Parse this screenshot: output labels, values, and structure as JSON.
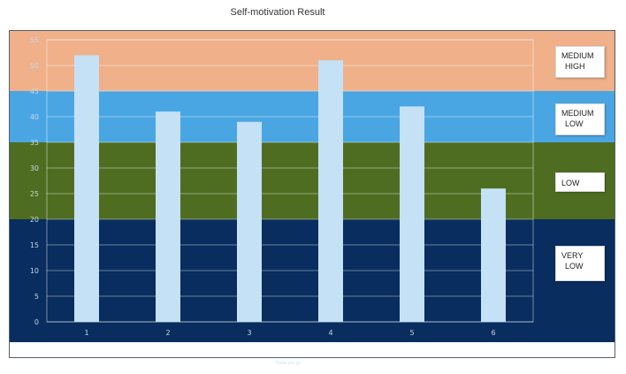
{
  "chart_data": {
    "type": "bar",
    "title": "Self-motivation Result",
    "categories": [
      "1",
      "2",
      "3",
      "4",
      "5",
      "6"
    ],
    "values": [
      52,
      41,
      39,
      51,
      42,
      26
    ],
    "ylim": [
      0,
      55
    ],
    "yticks": [
      0,
      5,
      10,
      15,
      20,
      25,
      30,
      35,
      40,
      45,
      50,
      55
    ],
    "xlabel": "",
    "ylabel": "",
    "grid": true,
    "bar_color": "#c5e1f6",
    "bands": [
      {
        "from": 0,
        "to": 20,
        "color": "#082d5e",
        "label_lines": [
          "VERY",
          "LOW"
        ]
      },
      {
        "from": 20,
        "to": 35,
        "color": "#4f6d20",
        "label_lines": [
          "LOW"
        ]
      },
      {
        "from": 35,
        "to": 45,
        "color": "#4aa6e3",
        "label_lines": [
          "MEDIUM",
          "LOW"
        ]
      },
      {
        "from": 45,
        "to": 55,
        "color": "#efb08a",
        "label_lines": [
          "MEDIUM",
          "HIGH"
        ]
      }
    ],
    "annotation": "There you go"
  }
}
